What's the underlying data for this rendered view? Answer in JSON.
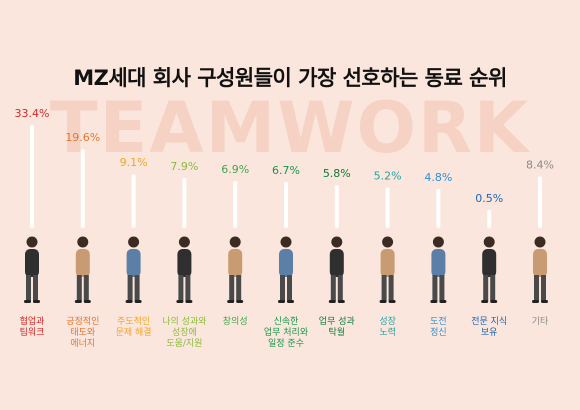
{
  "title": "MZ세대 회사 구성원들이 가장 선호하는 동료 순위",
  "watermark": "TEAMWORK",
  "colors": {
    "background": "#fbe6dd",
    "watermark": "#f6d2c4",
    "stem": "#ffffff"
  },
  "chart_data": {
    "type": "bar",
    "title": "MZ세대 회사 구성원들이 가장 선호하는 동료 순위",
    "unit": "%",
    "categories": [
      [
        "협업과",
        "팀워크"
      ],
      [
        "긍정적인",
        "태도와",
        "에너지"
      ],
      [
        "주도적인",
        "문제 해결"
      ],
      [
        "나의 성과와",
        "성장에",
        "도움/지원"
      ],
      [
        "창의성"
      ],
      [
        "신속한",
        "업무 처리와",
        "일정 준수"
      ],
      [
        "업무 성과",
        "탁월"
      ],
      [
        "성장",
        "노력"
      ],
      [
        "도전",
        "정신"
      ],
      [
        "전문 지식",
        "보유"
      ],
      [
        "기타"
      ]
    ],
    "values": [
      33.4,
      19.6,
      9.1,
      7.9,
      6.9,
      6.7,
      5.8,
      5.2,
      4.8,
      0.5,
      8.4
    ],
    "value_labels": [
      "33.4%",
      "19.6%",
      "9.1%",
      "7.9%",
      "6.9%",
      "6.7%",
      "5.8%",
      "5.2%",
      "4.8%",
      "0.5%",
      "8.4%"
    ],
    "colors": [
      "#d42a27",
      "#e5762d",
      "#f0a624",
      "#8cbb3d",
      "#42a64a",
      "#17964a",
      "#0e7a3c",
      "#27a3a3",
      "#2c8fd6",
      "#1f66b3",
      "#8a8a8a"
    ],
    "people_icons": [
      "person-with-phone",
      "person-in-coat",
      "person-with-beanie",
      "person-with-bag",
      "person-posing",
      "person-in-long-dress",
      "person-in-jacket",
      "person-with-tote-bag",
      "person-with-umbrella",
      "person-with-camera",
      "person-in-wide-pants"
    ]
  }
}
